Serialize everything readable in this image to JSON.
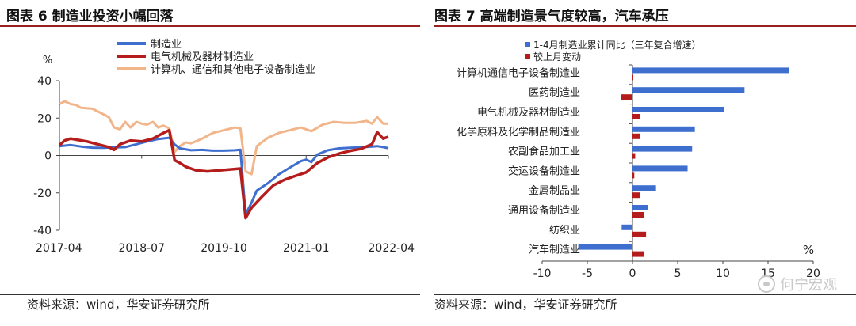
{
  "left_title": "图表 6  制造业投资小幅回落",
  "right_title": "图表 7  高端制造景气度较高，汽车承压",
  "source_left": "资料来源：wind，华安证券研究所",
  "source_right": "资料来源：wind，华安证券研究所",
  "watermark": "何宁宏观",
  "colors": {
    "blue": "#3e6fcf",
    "red": "#b51d1d",
    "orange": "#f2b589",
    "title_rule": "#9a1f1f"
  },
  "chart_data": [
    {
      "type": "line",
      "title": "制造业投资小幅回落",
      "ylabel": "%",
      "ylim": [
        -40,
        40
      ],
      "yticks": [
        -40,
        -20,
        0,
        20,
        40
      ],
      "xlim": [
        2017.25,
        2022.25
      ],
      "xtick_labels": [
        "2017-04",
        "2018-07",
        "2019-10",
        "2021-01",
        "2022-04"
      ],
      "xtick_values": [
        2017.25,
        2018.5,
        2019.75,
        2021.0,
        2022.25
      ],
      "legend": "top-center",
      "series": [
        {
          "name": "制造业",
          "color": "#3e6fcf",
          "points": [
            [
              2017.25,
              5
            ],
            [
              2017.42,
              5.6
            ],
            [
              2017.58,
              4.8
            ],
            [
              2017.75,
              4.2
            ],
            [
              2017.92,
              4.1
            ],
            [
              2018.08,
              4.3
            ],
            [
              2018.25,
              4.5
            ],
            [
              2018.42,
              6.0
            ],
            [
              2018.58,
              7.5
            ],
            [
              2018.75,
              8.8
            ],
            [
              2018.92,
              9.5
            ],
            [
              2019.0,
              5.9
            ],
            [
              2019.08,
              3.8
            ],
            [
              2019.25,
              2.8
            ],
            [
              2019.42,
              3.0
            ],
            [
              2019.58,
              2.6
            ],
            [
              2019.75,
              2.6
            ],
            [
              2019.92,
              2.8
            ],
            [
              2020.0,
              3.1
            ],
            [
              2020.08,
              -31.5
            ],
            [
              2020.17,
              -25.2
            ],
            [
              2020.25,
              -18.8
            ],
            [
              2020.42,
              -14.8
            ],
            [
              2020.58,
              -10.2
            ],
            [
              2020.75,
              -6.5
            ],
            [
              2020.92,
              -3.0
            ],
            [
              2021.0,
              -2.2
            ],
            [
              2021.08,
              -3.5
            ],
            [
              2021.17,
              0.5
            ],
            [
              2021.33,
              2.8
            ],
            [
              2021.5,
              3.8
            ],
            [
              2021.67,
              4.1
            ],
            [
              2021.83,
              4.3
            ],
            [
              2022.0,
              4.8
            ],
            [
              2022.08,
              5.0
            ],
            [
              2022.17,
              4.5
            ],
            [
              2022.25,
              3.9
            ]
          ]
        },
        {
          "name": "电气机械及器材制造业",
          "color": "#b51d1d",
          "points": [
            [
              2017.25,
              5.5
            ],
            [
              2017.33,
              8
            ],
            [
              2017.42,
              9
            ],
            [
              2017.5,
              8.5
            ],
            [
              2017.67,
              7.5
            ],
            [
              2017.83,
              6
            ],
            [
              2018.0,
              4.5
            ],
            [
              2018.08,
              3
            ],
            [
              2018.17,
              6
            ],
            [
              2018.33,
              8
            ],
            [
              2018.5,
              7.5
            ],
            [
              2018.67,
              9
            ],
            [
              2018.83,
              12
            ],
            [
              2018.92,
              13.5
            ],
            [
              2019.0,
              -2.5
            ],
            [
              2019.08,
              -4
            ],
            [
              2019.17,
              -6
            ],
            [
              2019.33,
              -8
            ],
            [
              2019.5,
              -8.5
            ],
            [
              2019.67,
              -8
            ],
            [
              2019.83,
              -7.5
            ],
            [
              2020.0,
              -7
            ],
            [
              2020.08,
              -33.5
            ],
            [
              2020.17,
              -28
            ],
            [
              2020.33,
              -22
            ],
            [
              2020.5,
              -16
            ],
            [
              2020.67,
              -13
            ],
            [
              2020.83,
              -11
            ],
            [
              2021.0,
              -9
            ],
            [
              2021.17,
              -4
            ],
            [
              2021.33,
              -1
            ],
            [
              2021.5,
              1
            ],
            [
              2021.67,
              2.5
            ],
            [
              2021.83,
              3.5
            ],
            [
              2022.0,
              6
            ],
            [
              2022.08,
              12.5
            ],
            [
              2022.17,
              9
            ],
            [
              2022.25,
              10
            ]
          ]
        },
        {
          "name": "计算机、通信和其他电子设备制造业",
          "color": "#f2b589",
          "points": [
            [
              2017.25,
              27.5
            ],
            [
              2017.33,
              29
            ],
            [
              2017.42,
              27.5
            ],
            [
              2017.5,
              27
            ],
            [
              2017.58,
              25.5
            ],
            [
              2017.75,
              25
            ],
            [
              2017.92,
              22
            ],
            [
              2018.0,
              20.5
            ],
            [
              2018.08,
              15
            ],
            [
              2018.17,
              14
            ],
            [
              2018.25,
              18
            ],
            [
              2018.33,
              15
            ],
            [
              2018.42,
              18
            ],
            [
              2018.5,
              17
            ],
            [
              2018.58,
              16.5
            ],
            [
              2018.67,
              18
            ],
            [
              2018.75,
              15
            ],
            [
              2018.83,
              16
            ],
            [
              2018.92,
              14.5
            ],
            [
              2019.0,
              2
            ],
            [
              2019.08,
              5
            ],
            [
              2019.17,
              7
            ],
            [
              2019.25,
              6.5
            ],
            [
              2019.42,
              9
            ],
            [
              2019.58,
              12
            ],
            [
              2019.75,
              13.5
            ],
            [
              2019.92,
              15
            ],
            [
              2020.0,
              14.5
            ],
            [
              2020.08,
              -8.5
            ],
            [
              2020.17,
              -10
            ],
            [
              2020.25,
              5
            ],
            [
              2020.42,
              9.5
            ],
            [
              2020.58,
              12
            ],
            [
              2020.75,
              13.5
            ],
            [
              2020.92,
              15
            ],
            [
              2021.08,
              13
            ],
            [
              2021.25,
              16.5
            ],
            [
              2021.42,
              18
            ],
            [
              2021.58,
              17.5
            ],
            [
              2021.75,
              17.5
            ],
            [
              2021.92,
              18.5
            ],
            [
              2022.0,
              17
            ],
            [
              2022.08,
              20.5
            ],
            [
              2022.17,
              17
            ],
            [
              2022.25,
              17
            ]
          ]
        }
      ]
    },
    {
      "type": "bar",
      "orientation": "horizontal",
      "title": "高端制造景气度较高，汽车承压",
      "xlabel": "%",
      "xlim": [
        -10,
        20
      ],
      "xticks": [
        -10,
        -5,
        0,
        5,
        10,
        15,
        20
      ],
      "legend": "top-left",
      "categories": [
        "计算机通信电子设备制造业",
        "医药制造业",
        "电气机械及器材制造业",
        "化学原料及化学制品制造业",
        "农副食品加工业",
        "交运设备制造业",
        "金属制品业",
        "通用设备制造业",
        "纺织业",
        "汽车制造业"
      ],
      "series": [
        {
          "name": "1-4月制造业累计同比（三年复合增速）",
          "color": "#3e6fcf",
          "values": [
            17.3,
            12.4,
            10.1,
            6.9,
            6.6,
            6.1,
            2.6,
            1.7,
            -1.2,
            -6.0
          ]
        },
        {
          "name": "较上月变动",
          "color": "#b51d1d",
          "values": [
            0.0,
            -1.3,
            0.8,
            0.8,
            0.3,
            0.2,
            0.8,
            1.3,
            1.5,
            1.3
          ]
        }
      ]
    }
  ]
}
